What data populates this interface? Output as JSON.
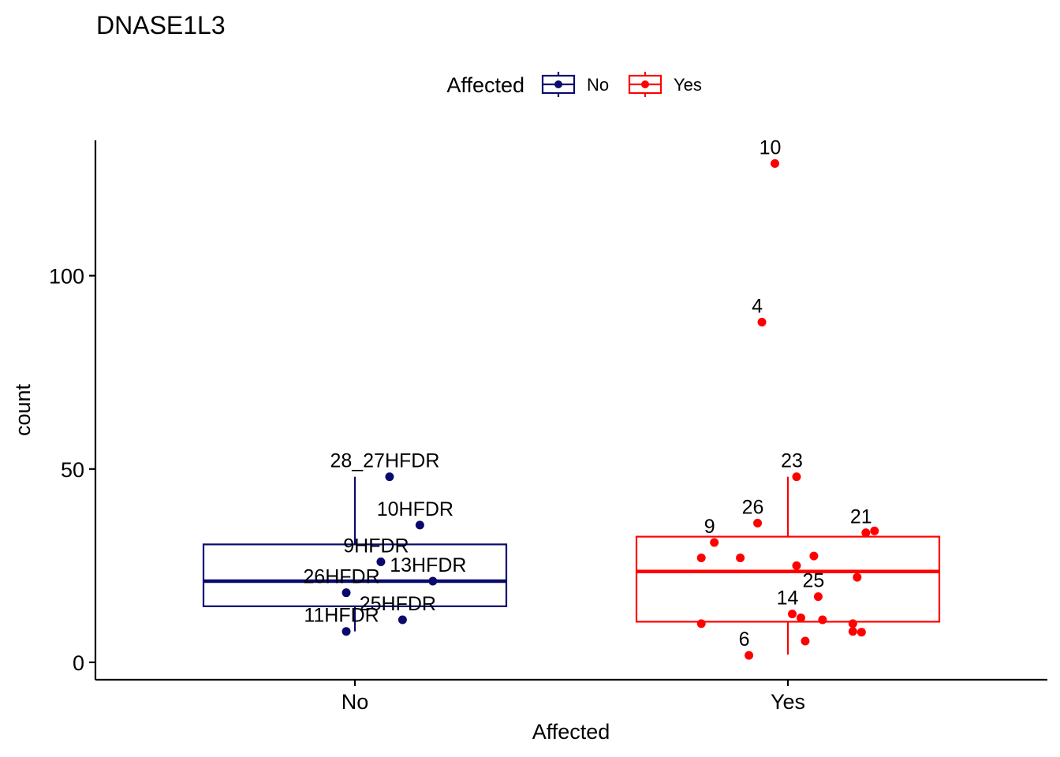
{
  "chart_data": {
    "type": "box",
    "title": "DNASE1L3",
    "xlabel": "Affected",
    "ylabel": "count",
    "ylim": [
      -4.5,
      135
    ],
    "yticks": [
      0,
      50,
      100
    ],
    "categories": [
      "No",
      "Yes"
    ],
    "legend": {
      "title": "Affected",
      "position": "top",
      "entries": [
        {
          "label": "No",
          "color": "#0a0a6e"
        },
        {
          "label": "Yes",
          "color": "#ff0000"
        }
      ]
    },
    "grid": false,
    "series": [
      {
        "name": "No",
        "color": "#0a0a6e",
        "box": {
          "whisker_low": 8,
          "q1": 14.5,
          "median": 21,
          "q3": 30.5,
          "whisker_high": 48
        },
        "points": [
          {
            "x": 0.08,
            "y": 48,
            "label": "28_27HFDR"
          },
          {
            "x": 0.15,
            "y": 35.5,
            "label": "10HFDR"
          },
          {
            "x": 0.06,
            "y": 26,
            "label": "9HFDR"
          },
          {
            "x": 0.18,
            "y": 21,
            "label": "13HFDR"
          },
          {
            "x": -0.02,
            "y": 18,
            "label": "26HFDR"
          },
          {
            "x": 0.11,
            "y": 11,
            "label": "25HFDR"
          },
          {
            "x": -0.02,
            "y": 8,
            "label": "11HFDR"
          }
        ]
      },
      {
        "name": "Yes",
        "color": "#ff0000",
        "box": {
          "whisker_low": 2,
          "q1": 10.5,
          "median": 23.5,
          "q3": 32.5,
          "whisker_high": 48
        },
        "points": [
          {
            "x": 0.97,
            "y": 129,
            "label": "10"
          },
          {
            "x": 0.94,
            "y": 88,
            "label": "4"
          },
          {
            "x": 1.02,
            "y": 48,
            "label": "23"
          },
          {
            "x": 0.93,
            "y": 36,
            "label": "26"
          },
          {
            "x": 1.2,
            "y": 34
          },
          {
            "x": 1.18,
            "y": 33.5,
            "label": "21"
          },
          {
            "x": 0.83,
            "y": 31,
            "label": "9"
          },
          {
            "x": 0.8,
            "y": 27
          },
          {
            "x": 0.89,
            "y": 27
          },
          {
            "x": 1.06,
            "y": 27.5
          },
          {
            "x": 1.02,
            "y": 25
          },
          {
            "x": 1.16,
            "y": 22
          },
          {
            "x": 1.07,
            "y": 17,
            "label": "25"
          },
          {
            "x": 1.01,
            "y": 12.5,
            "label": "14"
          },
          {
            "x": 1.03,
            "y": 11.5
          },
          {
            "x": 1.08,
            "y": 11
          },
          {
            "x": 0.8,
            "y": 10
          },
          {
            "x": 1.15,
            "y": 10
          },
          {
            "x": 1.15,
            "y": 8
          },
          {
            "x": 1.17,
            "y": 7.8
          },
          {
            "x": 1.04,
            "y": 5.5
          },
          {
            "x": 0.91,
            "y": 1.8,
            "label": "6"
          }
        ]
      }
    ]
  }
}
